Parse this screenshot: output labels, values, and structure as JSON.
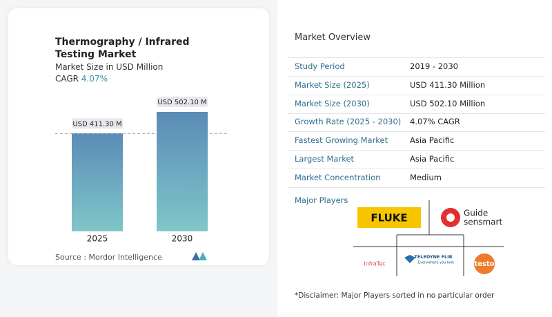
{
  "chart_data": {
    "type": "bar",
    "title": "Thermography / Infrared Testing Market",
    "subtitle": "Market Size in USD Million",
    "cagr_label": "CAGR",
    "cagr_value": "4.07%",
    "categories": [
      "2025",
      "2030"
    ],
    "values": [
      411.3,
      502.1
    ],
    "value_labels": [
      "USD 411.30 M",
      "USD 502.10 M"
    ],
    "colors": [
      "#5a8cb7",
      "#80c6c9"
    ],
    "source": "Source :  Mordor Intelligence"
  },
  "overview": {
    "title": "Market Overview",
    "rows": [
      {
        "label": "Study Period",
        "value": "2019 - 2030"
      },
      {
        "label": "Market Size (2025)",
        "value": "USD 411.30 Million"
      },
      {
        "label": "Market Size (2030)",
        "value": "USD 502.10 Million"
      },
      {
        "label": "Growth Rate (2025 - 2030)",
        "value": "4.07% CAGR"
      },
      {
        "label": "Fastest Growing Market",
        "value": "Asia Pacific"
      },
      {
        "label": "Largest Market",
        "value": "Asia Pacific"
      },
      {
        "label": "Market Concentration",
        "value": "Medium"
      }
    ]
  },
  "major_players": {
    "title": "Major Players",
    "fluke": "FLUKE",
    "guide": "Guide",
    "guide_sub": "sensmart",
    "infratec": "InfraTec",
    "teledyne": "TELEDYNE FLIR",
    "teledyne_tag": "Everywhere you look",
    "testo": "testo"
  },
  "disclaimer": "*Disclaimer: Major Players sorted in no particular order"
}
